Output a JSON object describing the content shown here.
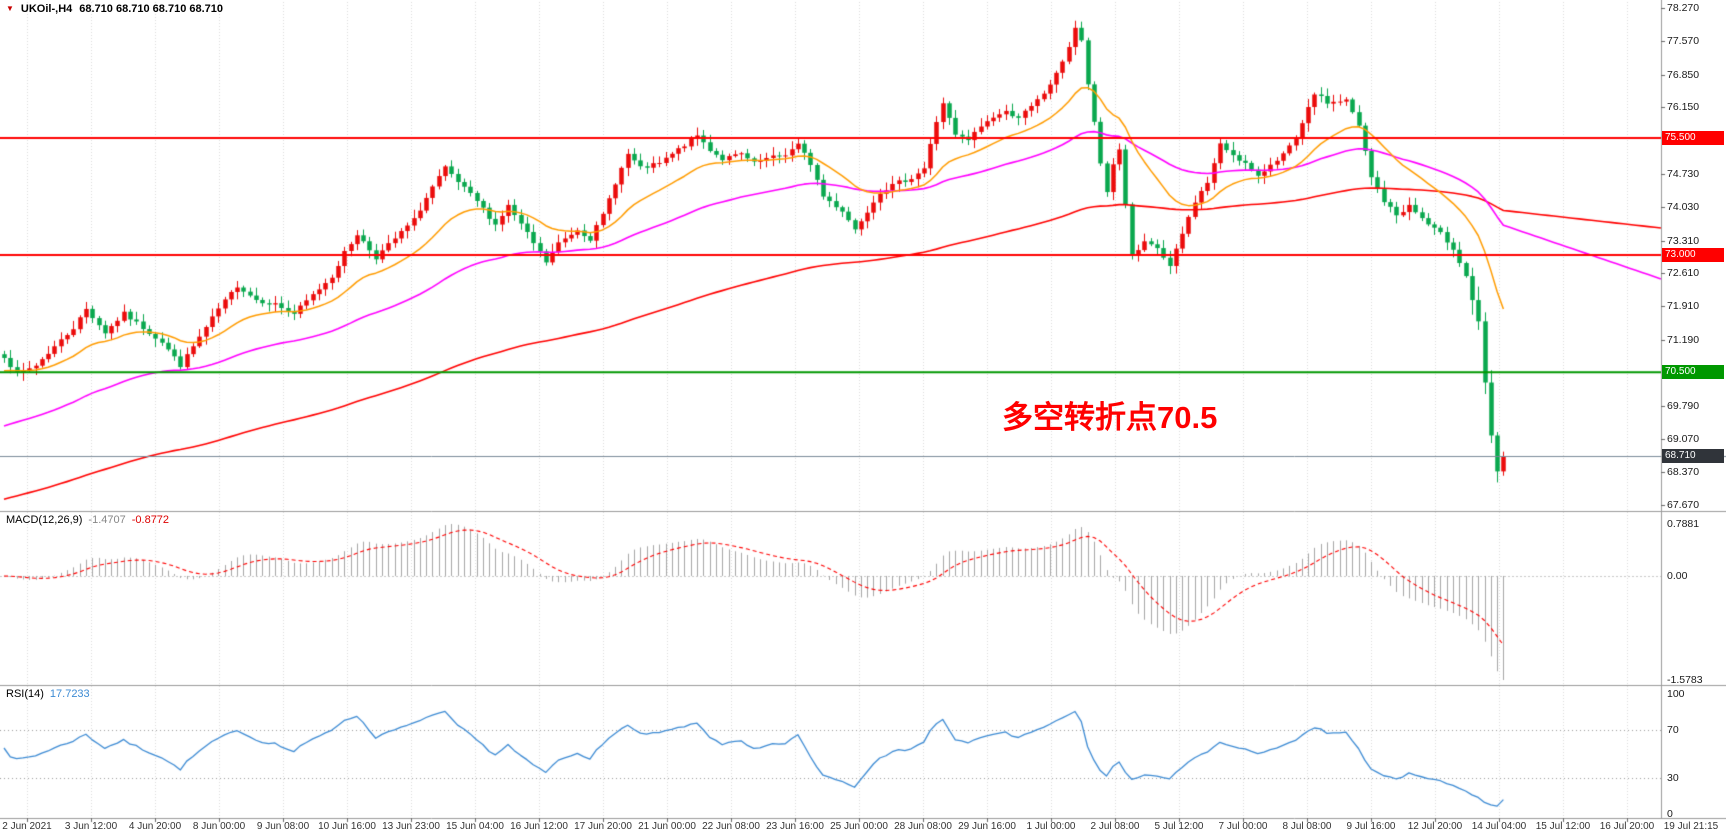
{
  "header": {
    "symbol": "UKOil-,H4",
    "ohlc": "68.710 68.710 68.710 68.710"
  },
  "main": {
    "annotation": {
      "text": "多空转折点70.5",
      "color": "#ff0000"
    },
    "levels": [
      {
        "price": 75.5,
        "label": "75.500",
        "color": "#ff0000"
      },
      {
        "price": 73.0,
        "label": "73.000",
        "color": "#009800",
        "line_color": "#ff0000"
      },
      {
        "price": 70.5,
        "label": "70.500",
        "color": "#009800"
      }
    ],
    "level_badge_colors": [
      "#ff0000",
      "#ff0000",
      "#009800"
    ],
    "current_price": {
      "value": 68.71,
      "label": "68.710",
      "badge_color": "#30343a",
      "line_color": "#7a8a99"
    },
    "price_ticks": [
      "78.270",
      "77.570",
      "76.850",
      "76.150",
      "74.730",
      "74.030",
      "73.310",
      "72.610",
      "71.910",
      "71.190",
      "69.790",
      "69.070",
      "68.370",
      "67.670"
    ]
  },
  "macd": {
    "label": "MACD(12,26,9)",
    "main_value": "-1.4707",
    "signal_value": "-0.8772",
    "axis": [
      "0.7881",
      "0.00",
      "-1.5783"
    ]
  },
  "rsi": {
    "label": "RSI(14)",
    "value": "17.7233",
    "axis": [
      "100",
      "70",
      "30",
      "0"
    ],
    "levels": [
      70,
      30
    ]
  },
  "time_axis": [
    "2 Jun 2021",
    "3 Jun 12:00",
    "4 Jun 20:00",
    "8 Jun 00:00",
    "9 Jun 08:00",
    "10 Jun 16:00",
    "13 Jun 23:00",
    "15 Jun 04:00",
    "16 Jun 12:00",
    "17 Jun 20:00",
    "21 Jun 00:00",
    "22 Jun 08:00",
    "23 Jun 16:00",
    "25 Jun 00:00",
    "28 Jun 08:00",
    "29 Jun 16:00",
    "1 Jul 00:00",
    "2 Jul 08:00",
    "5 Jul 12:00",
    "7 Jul 00:00",
    "8 Jul 08:00",
    "9 Jul 16:00",
    "12 Jul 20:00",
    "14 Jul 04:00",
    "15 Jul 12:00",
    "16 Jul 20:00",
    "19 Jul 21:15"
  ],
  "chart_data": {
    "type": "candlestick",
    "symbol": "UKOil-",
    "timeframe": "H4",
    "last_ohlc": {
      "open": 68.71,
      "high": 68.71,
      "low": 68.71,
      "close": 68.71
    },
    "price_axis": {
      "min": 67.67,
      "max": 78.27,
      "side": "right"
    },
    "horizontal_levels": [
      75.5,
      73.0,
      70.5
    ],
    "current_price": 68.71,
    "bars": 239,
    "close_path_anchors": [
      [
        0,
        70.85
      ],
      [
        2,
        70.45
      ],
      [
        5,
        70.65
      ],
      [
        8,
        71.05
      ],
      [
        11,
        71.45
      ],
      [
        13,
        71.85
      ],
      [
        16,
        71.35
      ],
      [
        19,
        71.75
      ],
      [
        22,
        71.45
      ],
      [
        25,
        71.15
      ],
      [
        28,
        70.65
      ],
      [
        31,
        71.25
      ],
      [
        34,
        71.85
      ],
      [
        37,
        72.35
      ],
      [
        40,
        72.05
      ],
      [
        43,
        71.95
      ],
      [
        46,
        71.75
      ],
      [
        49,
        72.15
      ],
      [
        52,
        72.55
      ],
      [
        54,
        73.05
      ],
      [
        56,
        73.45
      ],
      [
        59,
        72.95
      ],
      [
        62,
        73.35
      ],
      [
        65,
        73.75
      ],
      [
        68,
        74.45
      ],
      [
        70,
        74.85
      ],
      [
        72,
        74.55
      ],
      [
        75,
        74.15
      ],
      [
        78,
        73.65
      ],
      [
        80,
        74.05
      ],
      [
        83,
        73.45
      ],
      [
        86,
        72.85
      ],
      [
        88,
        73.25
      ],
      [
        91,
        73.55
      ],
      [
        93,
        73.35
      ],
      [
        95,
        73.85
      ],
      [
        97,
        74.55
      ],
      [
        99,
        75.15
      ],
      [
        101,
        74.85
      ],
      [
        104,
        74.95
      ],
      [
        106,
        75.15
      ],
      [
        108,
        75.35
      ],
      [
        110,
        75.55
      ],
      [
        112,
        75.25
      ],
      [
        114,
        75.05
      ],
      [
        117,
        75.15
      ],
      [
        119,
        74.95
      ],
      [
        121,
        75.05
      ],
      [
        124,
        75.15
      ],
      [
        126,
        75.35
      ],
      [
        128,
        74.95
      ],
      [
        130,
        74.25
      ],
      [
        133,
        73.95
      ],
      [
        135,
        73.55
      ],
      [
        137,
        73.95
      ],
      [
        139,
        74.35
      ],
      [
        142,
        74.55
      ],
      [
        144,
        74.65
      ],
      [
        146,
        74.85
      ],
      [
        148,
        75.85
      ],
      [
        149,
        76.25
      ],
      [
        151,
        75.55
      ],
      [
        153,
        75.45
      ],
      [
        155,
        75.75
      ],
      [
        157,
        75.95
      ],
      [
        159,
        76.05
      ],
      [
        161,
        75.95
      ],
      [
        163,
        76.15
      ],
      [
        165,
        76.45
      ],
      [
        167,
        76.85
      ],
      [
        169,
        77.45
      ],
      [
        170,
        77.85
      ],
      [
        171,
        77.55
      ],
      [
        172,
        76.65
      ],
      [
        174,
        74.95
      ],
      [
        175,
        74.35
      ],
      [
        176,
        74.95
      ],
      [
        177,
        75.25
      ],
      [
        179,
        72.95
      ],
      [
        181,
        73.25
      ],
      [
        183,
        73.15
      ],
      [
        185,
        72.75
      ],
      [
        187,
        73.45
      ],
      [
        189,
        74.15
      ],
      [
        191,
        74.55
      ],
      [
        193,
        75.35
      ],
      [
        195,
        75.15
      ],
      [
        197,
        74.95
      ],
      [
        199,
        74.65
      ],
      [
        201,
        74.95
      ],
      [
        203,
        75.15
      ],
      [
        205,
        75.45
      ],
      [
        208,
        76.45
      ],
      [
        210,
        76.25
      ],
      [
        213,
        76.3
      ],
      [
        215,
        75.75
      ],
      [
        217,
        74.65
      ],
      [
        219,
        74.15
      ],
      [
        221,
        73.85
      ],
      [
        223,
        74.05
      ],
      [
        226,
        73.65
      ],
      [
        228,
        73.45
      ],
      [
        230,
        73.15
      ],
      [
        232,
        72.55
      ],
      [
        234,
        71.55
      ],
      [
        235,
        70.25
      ],
      [
        236,
        69.15
      ],
      [
        237,
        68.35
      ],
      [
        238,
        68.71
      ]
    ],
    "indicators": {
      "macd": {
        "params": [
          12,
          26,
          9
        ],
        "main": -1.4707,
        "signal": -0.8772,
        "axis_max": 0.7881,
        "axis_min": -1.5783
      },
      "rsi": {
        "period": 14,
        "value": 17.7233,
        "levels": [
          70,
          30
        ],
        "range": [
          0,
          100
        ]
      }
    },
    "colors": {
      "bull": "#eb0b0b",
      "bear": "#09a84e",
      "ma_fast": "#ff9c00",
      "ma_mid": "#ff00ff",
      "ma_slow": "#ff0000",
      "macd_hist": "#a6a6a6",
      "macd_signal": "#ff0000",
      "rsi_line": "#3d8bd4",
      "level_red": "#ff0000",
      "level_green": "#009800"
    }
  }
}
